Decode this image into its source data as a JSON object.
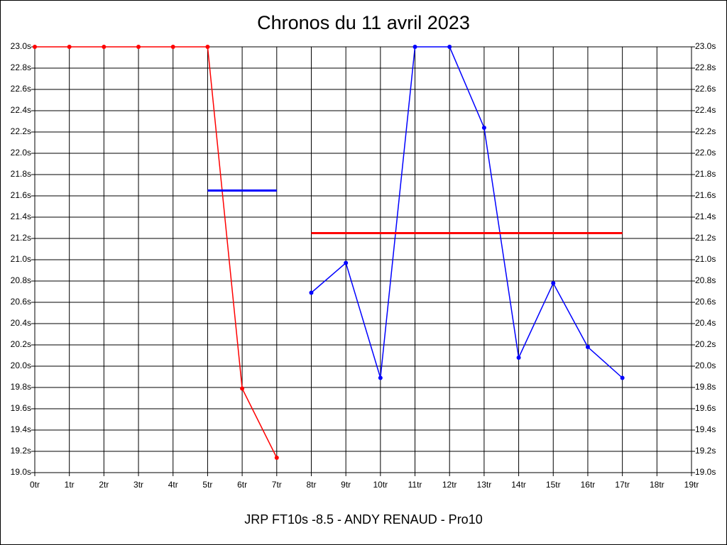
{
  "chart_data": {
    "type": "line",
    "title": "Chronos du 11 avril 2023",
    "xlabel": "JRP FT10s -8.5 - ANDY RENAUD - Pro10",
    "categories": [
      "0tr",
      "1tr",
      "2tr",
      "3tr",
      "4tr",
      "5tr",
      "6tr",
      "7tr",
      "8tr",
      "9tr",
      "10tr",
      "11tr",
      "12tr",
      "13tr",
      "14tr",
      "15tr",
      "16tr",
      "17tr",
      "18tr",
      "19tr"
    ],
    "series": [
      {
        "color": "#ff0000",
        "values": [
          23,
          23,
          23,
          23,
          23,
          23,
          19.79,
          19.14,
          null,
          null,
          null,
          null,
          null,
          null,
          null,
          null,
          null,
          null,
          null,
          null
        ]
      },
      {
        "color": "#0000ff",
        "values": [
          null,
          null,
          null,
          null,
          null,
          null,
          null,
          null,
          20.69,
          20.97,
          19.89,
          23,
          23,
          22.24,
          20.08,
          20.78,
          20.18,
          19.89,
          null,
          null
        ]
      },
      {
        "color": "#0000ff",
        "values": [
          null,
          null,
          null,
          null,
          null,
          21.65,
          21.65,
          21.65,
          null,
          null,
          null,
          null,
          null,
          null,
          null,
          null,
          null,
          null,
          null,
          null
        ]
      },
      {
        "color": "#ff0000",
        "values": [
          null,
          null,
          null,
          null,
          null,
          null,
          null,
          null,
          21.25,
          21.25,
          21.25,
          21.25,
          21.25,
          21.25,
          21.25,
          21.25,
          21.25,
          21.25,
          null,
          null
        ]
      }
    ],
    "ylim": [
      19,
      23
    ],
    "yticks": [
      {
        "value": 19.0,
        "label": "19.0s"
      },
      {
        "value": 19.2,
        "label": "19.2s"
      },
      {
        "value": 19.4,
        "label": "19.4s"
      },
      {
        "value": 19.6,
        "label": "19.6s"
      },
      {
        "value": 19.8,
        "label": "19.8s"
      },
      {
        "value": 20.0,
        "label": "20.0s"
      },
      {
        "value": 20.2,
        "label": "20.2s"
      },
      {
        "value": 20.4,
        "label": "20.4s"
      },
      {
        "value": 20.6,
        "label": "20.6s"
      },
      {
        "value": 20.8,
        "label": "20.8s"
      },
      {
        "value": 21.0,
        "label": "21.0s"
      },
      {
        "value": 21.2,
        "label": "21.2s"
      },
      {
        "value": 21.4,
        "label": "21.4s"
      },
      {
        "value": 21.6,
        "label": "21.6s"
      },
      {
        "value": 21.8,
        "label": "21.8s"
      },
      {
        "value": 22.0,
        "label": "22.0s"
      },
      {
        "value": 22.2,
        "label": "22.2s"
      },
      {
        "value": 22.4,
        "label": "22.4s"
      },
      {
        "value": 22.6,
        "label": "22.6s"
      },
      {
        "value": 22.8,
        "label": "22.8s"
      },
      {
        "value": 23.0,
        "label": "23.0s"
      }
    ],
    "grid": true
  }
}
